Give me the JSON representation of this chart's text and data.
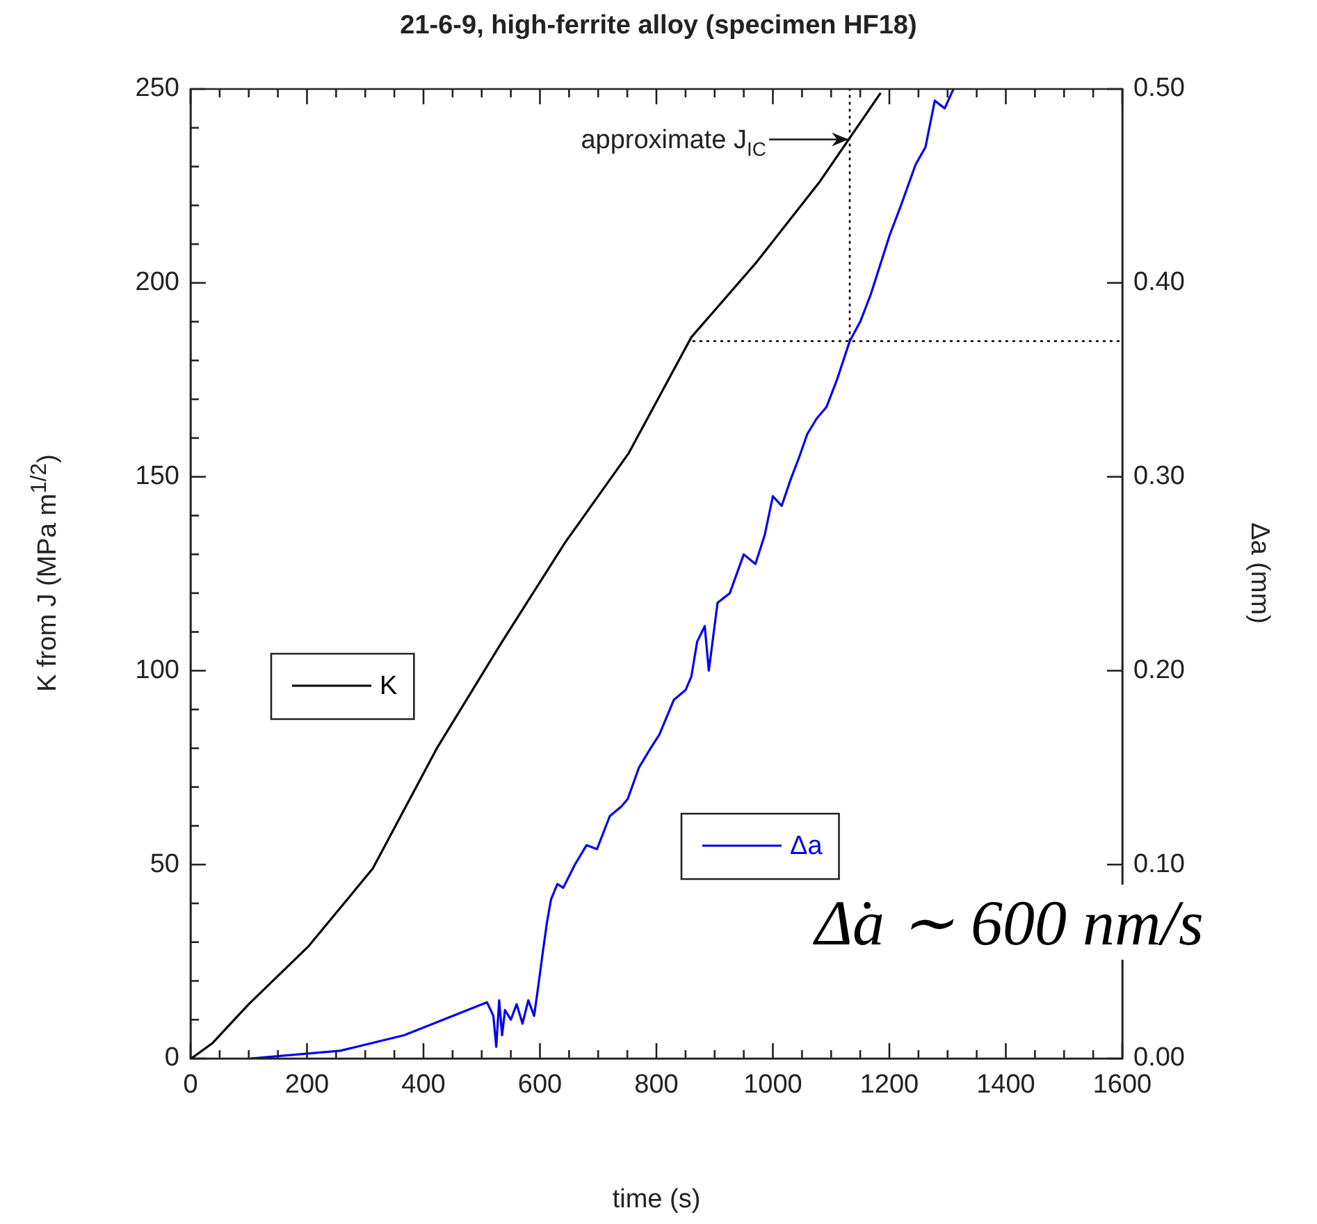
{
  "chart_data": {
    "type": "line",
    "title": "21-6-9, high-ferrite alloy (specimen HF18)",
    "xlabel": "time (s)",
    "ylabel": "K from J (MPa m$^{1/2}$)",
    "y2label": "Δa (mm)",
    "xlim": [
      0,
      1600
    ],
    "ylim": [
      0,
      250
    ],
    "y2lim": [
      0,
      0.5
    ],
    "xticks": [
      0,
      {
        "value": 50,
        "label": null
      },
      {
        "value": 100,
        "label": null
      },
      {
        "value": 150,
        "label": null
      },
      200,
      {
        "value": 250,
        "label": null
      },
      {
        "value": 300,
        "label": null
      },
      {
        "value": 350,
        "label": null
      },
      400,
      {
        "value": 450,
        "label": null
      },
      {
        "value": 500,
        "label": null
      },
      {
        "value": 550,
        "label": null
      },
      600,
      {
        "value": 650,
        "label": null
      },
      {
        "value": 700,
        "label": null
      },
      {
        "value": 750,
        "label": null
      },
      800,
      {
        "value": 850,
        "label": null
      },
      {
        "value": 900,
        "label": null
      },
      {
        "value": 950,
        "label": null
      },
      1000,
      {
        "value": 1050,
        "label": null
      },
      {
        "value": 1100,
        "label": null
      },
      {
        "value": 1150,
        "label": null
      },
      1200,
      {
        "value": 1250,
        "label": null
      },
      {
        "value": 1300,
        "label": null
      },
      {
        "value": 1350,
        "label": null
      },
      1400,
      {
        "value": 1450,
        "label": null
      },
      {
        "value": 1500,
        "label": null
      },
      {
        "value": 1550,
        "label": null
      },
      1600
    ],
    "yticks": [
      0,
      {
        "value": 10,
        "label": null
      },
      {
        "value": 20,
        "label": null
      },
      {
        "value": 30,
        "label": null
      },
      {
        "value": 40,
        "label": null
      },
      50,
      {
        "value": 60,
        "label": null
      },
      {
        "value": 70,
        "label": null
      },
      {
        "value": 80,
        "label": null
      },
      {
        "value": 90,
        "label": null
      },
      100,
      {
        "value": 110,
        "label": null
      },
      {
        "value": 120,
        "label": null
      },
      {
        "value": 130,
        "label": null
      },
      {
        "value": 140,
        "label": null
      },
      150,
      {
        "value": 160,
        "label": null
      },
      {
        "value": 170,
        "label": null
      },
      {
        "value": 180,
        "label": null
      },
      {
        "value": 190,
        "label": null
      },
      200,
      {
        "value": 210,
        "label": null
      },
      {
        "value": 220,
        "label": null
      },
      {
        "value": 230,
        "label": null
      },
      {
        "value": 240,
        "label": null
      },
      250
    ],
    "y2ticks": [
      {
        "value": 0,
        "label": "0.00"
      },
      {
        "value": 0.1,
        "label": "0.10"
      },
      {
        "value": 0.2,
        "label": "0.20"
      },
      {
        "value": 0.3,
        "label": "0.30"
      },
      {
        "value": 0.4,
        "label": "0.40"
      },
      {
        "value": 0.5,
        "label": "0.50"
      }
    ],
    "grid": false,
    "legend": "left",
    "marker": "none",
    "series": [
      {
        "name": "K",
        "color": "#000000",
        "line_style": "solid",
        "x": [
          0,
          5,
          38,
          100,
          203,
          313,
          423,
          533,
          643,
          752,
          860,
          970,
          1080,
          1185
        ],
        "values": [
          0,
          0.4,
          4,
          14,
          29,
          49,
          80,
          107,
          133,
          156,
          186,
          205,
          226,
          249
        ]
      },
      {
        "name": "Δa",
        "color": "#0000ee",
        "axis": "y2",
        "line_style": "solid",
        "x": [
          103,
          257,
          367,
          509,
          520,
          525,
          530,
          535,
          540,
          550,
          560,
          570,
          580,
          590,
          597,
          605,
          612,
          619,
          630,
          640,
          660,
          680,
          698,
          720,
          740,
          751,
          770,
          790,
          805,
          830,
          850,
          860,
          870,
          883,
          890,
          905,
          926,
          950,
          970,
          986,
          1000,
          1015,
          1031,
          1045,
          1059,
          1075,
          1092,
          1110,
          1132,
          1150,
          1168,
          1185,
          1201,
          1220,
          1245,
          1262,
          1278,
          1295,
          1310
        ],
        "values": [
          0,
          0.004,
          0.012,
          0.029,
          0.022,
          0.006,
          0.03,
          0.012,
          0.025,
          0.02,
          0.028,
          0.018,
          0.03,
          0.022,
          0.037,
          0.055,
          0.07,
          0.082,
          0.09,
          0.088,
          0.1,
          0.11,
          0.108,
          0.125,
          0.13,
          0.134,
          0.15,
          0.16,
          0.167,
          0.185,
          0.19,
          0.197,
          0.215,
          0.223,
          0.2,
          0.235,
          0.24,
          0.26,
          0.255,
          0.27,
          0.29,
          0.285,
          0.299,
          0.31,
          0.322,
          0.33,
          0.336,
          0.35,
          0.37,
          0.38,
          0.394,
          0.41,
          0.425,
          0.44,
          0.461,
          0.47,
          0.494,
          0.49,
          0.5
        ]
      },
      {
        "color": "#000000",
        "line_style": "dotted",
        "x": [
          1132,
          1132
        ],
        "values": [
          185,
          250
        ]
      },
      {
        "color": "#000000",
        "line_style": "dotted",
        "x": [
          862,
          1600
        ],
        "values": [
          185,
          185
        ]
      }
    ],
    "annotations": [
      {
        "text": "approximate J$_{IC}$",
        "x": 1132,
        "y": 237
      },
      "Δ̇a ∼ 600 nm/s"
    ]
  }
}
